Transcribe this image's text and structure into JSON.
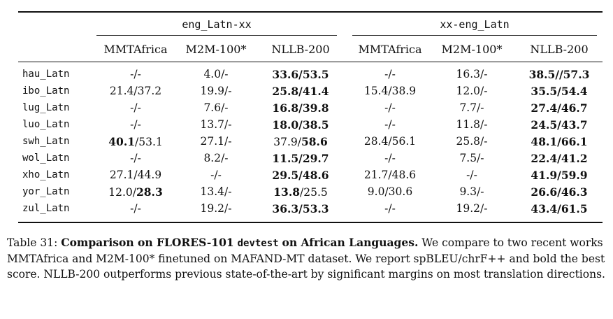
{
  "table": {
    "group_headers": [
      "eng_Latn-xx",
      "xx-eng_Latn"
    ],
    "column_headers": [
      "MMTAfrica",
      "M2M-100*",
      "NLLB-200",
      "MMTAfrica",
      "M2M-100*",
      "NLLB-200"
    ],
    "rows": [
      {
        "lang": "hau_Latn",
        "cells": [
          [
            {
              "t": "-/-",
              "b": false
            }
          ],
          [
            {
              "t": "4.0/-",
              "b": false
            }
          ],
          [
            {
              "t": "33.6/53.5",
              "b": true
            }
          ],
          [
            {
              "t": "-/-",
              "b": false
            }
          ],
          [
            {
              "t": "16.3/-",
              "b": false
            }
          ],
          [
            {
              "t": "38.5//57.3",
              "b": true
            }
          ]
        ]
      },
      {
        "lang": "ibo_Latn",
        "cells": [
          [
            {
              "t": "21.4/37.2",
              "b": false
            }
          ],
          [
            {
              "t": "19.9/-",
              "b": false
            }
          ],
          [
            {
              "t": "25.8/41.4",
              "b": true
            }
          ],
          [
            {
              "t": "15.4/38.9",
              "b": false
            }
          ],
          [
            {
              "t": "12.0/-",
              "b": false
            }
          ],
          [
            {
              "t": "35.5/54.4",
              "b": true
            }
          ]
        ]
      },
      {
        "lang": "lug_Latn",
        "cells": [
          [
            {
              "t": "-/-",
              "b": false
            }
          ],
          [
            {
              "t": "7.6/-",
              "b": false
            }
          ],
          [
            {
              "t": "16.8/39.8",
              "b": true
            }
          ],
          [
            {
              "t": "-/-",
              "b": false
            }
          ],
          [
            {
              "t": "7.7/-",
              "b": false
            }
          ],
          [
            {
              "t": "27.4/46.7",
              "b": true
            }
          ]
        ]
      },
      {
        "lang": "luo_Latn",
        "cells": [
          [
            {
              "t": "-/-",
              "b": false
            }
          ],
          [
            {
              "t": "13.7/-",
              "b": false
            }
          ],
          [
            {
              "t": "18.0/38.5",
              "b": true
            }
          ],
          [
            {
              "t": "-/-",
              "b": false
            }
          ],
          [
            {
              "t": "11.8/-",
              "b": false
            }
          ],
          [
            {
              "t": "24.5/43.7",
              "b": true
            }
          ]
        ]
      },
      {
        "lang": "swh_Latn",
        "cells": [
          [
            {
              "t": "40.1",
              "b": true
            },
            {
              "t": "/53.1",
              "b": false
            }
          ],
          [
            {
              "t": "27.1/-",
              "b": false
            }
          ],
          [
            {
              "t": "37.9/",
              "b": false
            },
            {
              "t": "58.6",
              "b": true
            }
          ],
          [
            {
              "t": "28.4/56.1",
              "b": false
            }
          ],
          [
            {
              "t": "25.8/-",
              "b": false
            }
          ],
          [
            {
              "t": "48.1/66.1",
              "b": true
            }
          ]
        ]
      },
      {
        "lang": "wol_Latn",
        "cells": [
          [
            {
              "t": "-/-",
              "b": false
            }
          ],
          [
            {
              "t": "8.2/-",
              "b": false
            }
          ],
          [
            {
              "t": "11.5/29.7",
              "b": true
            }
          ],
          [
            {
              "t": "-/-",
              "b": false
            }
          ],
          [
            {
              "t": "7.5/-",
              "b": false
            }
          ],
          [
            {
              "t": "22.4/41.2",
              "b": true
            }
          ]
        ]
      },
      {
        "lang": "xho_Latn",
        "cells": [
          [
            {
              "t": "27.1/44.9",
              "b": false
            }
          ],
          [
            {
              "t": "-/-",
              "b": false
            }
          ],
          [
            {
              "t": "29.5/48.6",
              "b": true
            }
          ],
          [
            {
              "t": "21.7/48.6",
              "b": false
            }
          ],
          [
            {
              "t": "-/-",
              "b": false
            }
          ],
          [
            {
              "t": "41.9/59.9",
              "b": true
            }
          ]
        ]
      },
      {
        "lang": "yor_Latn",
        "cells": [
          [
            {
              "t": "12.0/",
              "b": false
            },
            {
              "t": "28.3",
              "b": true
            }
          ],
          [
            {
              "t": "13.4/-",
              "b": false
            }
          ],
          [
            {
              "t": "13.8",
              "b": true
            },
            {
              "t": "/25.5",
              "b": false
            }
          ],
          [
            {
              "t": "9.0/30.6",
              "b": false
            }
          ],
          [
            {
              "t": "9.3/-",
              "b": false
            }
          ],
          [
            {
              "t": "26.6/46.3",
              "b": true
            }
          ]
        ]
      },
      {
        "lang": "zul_Latn",
        "cells": [
          [
            {
              "t": "-/-",
              "b": false
            }
          ],
          [
            {
              "t": "19.2/-",
              "b": false
            }
          ],
          [
            {
              "t": "36.3/53.3",
              "b": true
            }
          ],
          [
            {
              "t": "-/-",
              "b": false
            }
          ],
          [
            {
              "t": "19.2/-",
              "b": false
            }
          ],
          [
            {
              "t": "43.4/61.5",
              "b": true
            }
          ]
        ]
      }
    ]
  },
  "caption": {
    "label": "Table 31:",
    "bold_part1": "Comparison on FLORES-101",
    "mono_part": "devtest",
    "bold_part2": "on African Languages.",
    "body": "We compare to two recent works MMTAfrica and M2M-100* finetuned on MAFAND-MT dataset. We report spBLEU/chrF++ and bold the best score. NLLB-200 outperforms previous state-of-the-art by significant margins on most translation directions."
  }
}
